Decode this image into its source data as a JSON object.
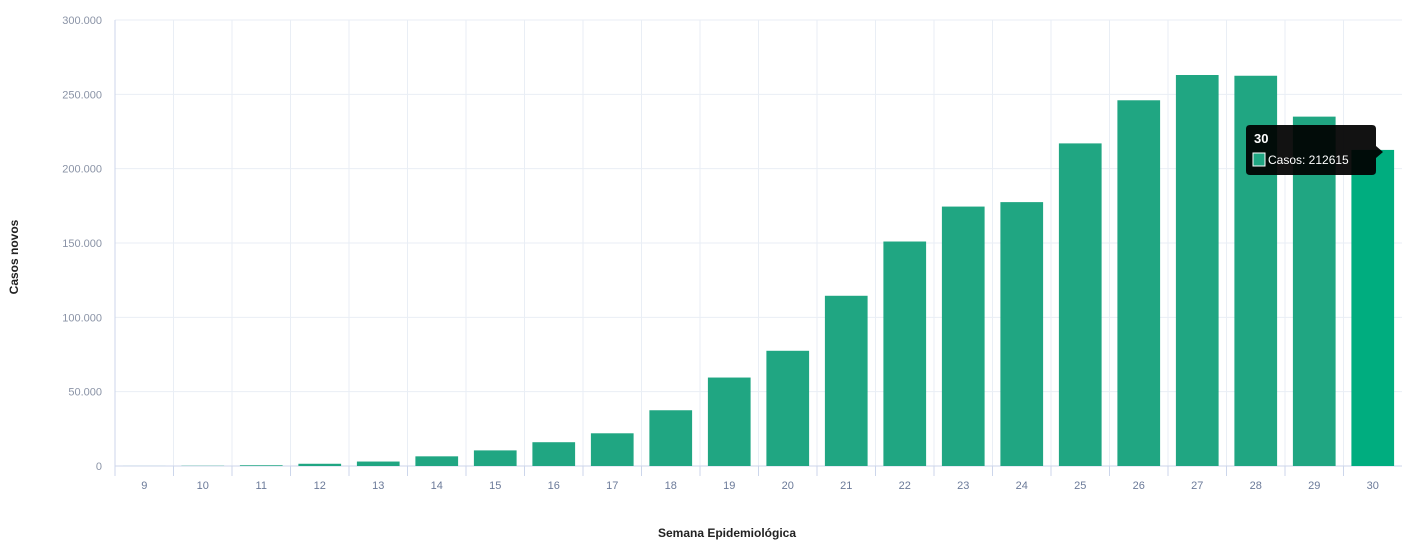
{
  "chart_data": {
    "type": "bar",
    "title": "",
    "xlabel": "Semana Epidemiológica",
    "ylabel": "Casos novos",
    "ylim": [
      0,
      300000
    ],
    "yticks": [
      0,
      50000,
      100000,
      150000,
      200000,
      250000,
      300000
    ],
    "ytick_labels": [
      "0",
      "50.000",
      "100.000",
      "150.000",
      "200.000",
      "250.000",
      "300.000"
    ],
    "grid": true,
    "categories": [
      "9",
      "10",
      "11",
      "12",
      "13",
      "14",
      "15",
      "16",
      "17",
      "18",
      "19",
      "20",
      "21",
      "22",
      "23",
      "24",
      "25",
      "26",
      "27",
      "28",
      "29",
      "30"
    ],
    "series": [
      {
        "name": "Casos",
        "values": [
          20,
          150,
          500,
          1500,
          3000,
          6500,
          10500,
          16000,
          22000,
          37500,
          59500,
          77500,
          114500,
          151000,
          174500,
          177500,
          217000,
          246000,
          263000,
          262500,
          235000,
          212615
        ],
        "color": "#20a682",
        "highlight_color": "#00ad7f"
      }
    ],
    "highlighted_category": "30",
    "tooltip": {
      "title": "30",
      "label": "Casos: 212615"
    }
  },
  "colors": {
    "bar": "#20a682",
    "bar_highlight": "#00ad7f",
    "grid": "#e9eef5",
    "axis": "#ccd6eb",
    "tooltip_bg": "#000000"
  }
}
